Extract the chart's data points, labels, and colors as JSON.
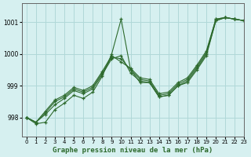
{
  "title": "Graphe pression niveau de la mer (hPa)",
  "bg_color": "#d6f0f0",
  "grid_color": "#b0d8d8",
  "line_color": "#2d6a2d",
  "xlim": [
    -0.5,
    23
  ],
  "ylim": [
    997.4,
    1001.6
  ],
  "yticks": [
    998,
    999,
    1000,
    1001
  ],
  "xticks": [
    0,
    1,
    2,
    3,
    4,
    5,
    6,
    7,
    8,
    9,
    10,
    11,
    12,
    13,
    14,
    15,
    16,
    17,
    18,
    19,
    20,
    21,
    22,
    23
  ],
  "series": [
    [
      998.0,
      997.8,
      997.85,
      998.25,
      998.45,
      998.7,
      998.6,
      998.8,
      999.3,
      1000.0,
      1001.1,
      999.5,
      999.1,
      999.1,
      998.65,
      998.7,
      999.0,
      999.1,
      999.5,
      999.95,
      1001.05,
      1001.15,
      1001.1,
      1001.05
    ],
    [
      998.0,
      997.85,
      998.1,
      998.4,
      998.6,
      998.85,
      998.75,
      998.9,
      999.35,
      999.85,
      999.95,
      999.4,
      999.15,
      999.1,
      998.65,
      998.7,
      999.0,
      999.15,
      999.55,
      1000.0,
      1001.05,
      1001.15,
      1001.1,
      1001.05
    ],
    [
      998.0,
      997.85,
      998.15,
      998.5,
      998.65,
      998.9,
      998.8,
      998.95,
      999.4,
      999.9,
      999.85,
      999.5,
      999.2,
      999.15,
      998.7,
      998.75,
      999.05,
      999.2,
      999.6,
      1000.05,
      1001.1,
      1001.15,
      1001.1,
      1001.05
    ],
    [
      998.0,
      997.85,
      998.2,
      998.55,
      998.7,
      998.95,
      998.85,
      999.0,
      999.45,
      999.95,
      999.75,
      999.55,
      999.25,
      999.2,
      998.75,
      998.8,
      999.1,
      999.25,
      999.65,
      1000.1,
      1001.1,
      1001.15,
      1001.1,
      1001.05
    ]
  ]
}
